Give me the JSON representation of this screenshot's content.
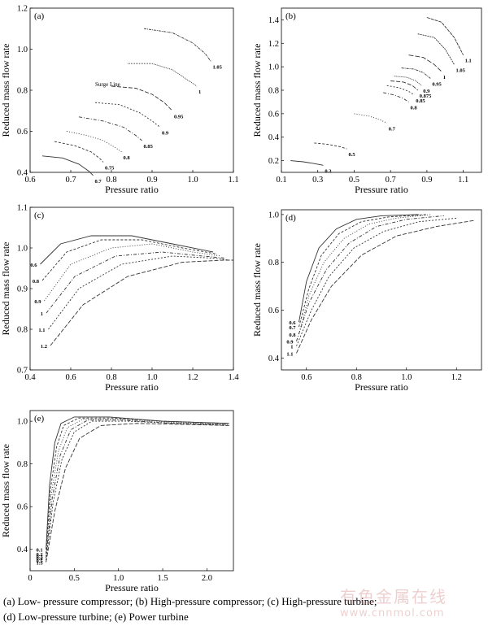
{
  "caption": {
    "line1": "(a) Low- pressure compressor; (b) High-pressure compressor; (c) High-pressure turbine;",
    "line2": "(d)  Low-pressure  turbine;  (e)  Power turbine"
  },
  "watermark": {
    "line1": "有色金属在线",
    "line2": "www.cnnmol.com"
  },
  "chart_data": [
    {
      "id": "a",
      "panel_label": "(a)",
      "type": "line",
      "xlabel": "Pressure ratio",
      "ylabel": "Reduced mass flow rate",
      "xlim": [
        0.6,
        1.1
      ],
      "ylim": [
        0.4,
        1.2
      ],
      "xticks": [
        "0.6",
        "0.7",
        "0.8",
        "0.9",
        "1.0",
        "1.1"
      ],
      "yticks": [
        "0.4",
        "0.6",
        "0.8",
        "1.0",
        "1.2"
      ],
      "annotations": [
        {
          "text": "Surge Line",
          "x": 0.76,
          "y": 0.82
        }
      ],
      "series": [
        {
          "name": "0.7",
          "x": [
            0.63,
            0.68,
            0.72,
            0.745,
            0.755
          ],
          "y": [
            0.48,
            0.47,
            0.44,
            0.405,
            0.385
          ]
        },
        {
          "name": "0.75",
          "x": [
            0.66,
            0.71,
            0.75,
            0.77,
            0.78
          ],
          "y": [
            0.55,
            0.53,
            0.5,
            0.47,
            0.45
          ]
        },
        {
          "name": "0.8",
          "x": [
            0.69,
            0.74,
            0.78,
            0.81,
            0.825
          ],
          "y": [
            0.6,
            0.58,
            0.555,
            0.52,
            0.5
          ]
        },
        {
          "name": "0.85",
          "x": [
            0.72,
            0.78,
            0.83,
            0.86,
            0.875
          ],
          "y": [
            0.67,
            0.65,
            0.62,
            0.58,
            0.555
          ]
        },
        {
          "name": "0.9",
          "x": [
            0.76,
            0.82,
            0.87,
            0.9,
            0.92
          ],
          "y": [
            0.74,
            0.73,
            0.69,
            0.65,
            0.62
          ]
        },
        {
          "name": "0.95",
          "x": [
            0.8,
            0.86,
            0.9,
            0.93,
            0.95
          ],
          "y": [
            0.82,
            0.81,
            0.78,
            0.74,
            0.7
          ]
        },
        {
          "name": "1",
          "x": [
            0.84,
            0.9,
            0.95,
            0.98,
            1.01
          ],
          "y": [
            0.93,
            0.93,
            0.9,
            0.86,
            0.82
          ]
        },
        {
          "name": "1.05",
          "x": [
            0.88,
            0.95,
            1.0,
            1.03,
            1.045
          ],
          "y": [
            1.1,
            1.08,
            1.03,
            0.98,
            0.94
          ]
        }
      ]
    },
    {
      "id": "b",
      "panel_label": "(b)",
      "type": "line",
      "xlabel": "Pressure ratio",
      "ylabel": "Reduced mass flow rate",
      "xlim": [
        0.1,
        1.2
      ],
      "ylim": [
        0.1,
        1.5
      ],
      "xticks": [
        "0.1",
        "0.3",
        "0.5",
        "0.7",
        "0.9",
        "1.1"
      ],
      "yticks": [
        "0.2",
        "0.4",
        "0.6",
        "0.8",
        "1.0",
        "1.2",
        "1.4"
      ],
      "series": [
        {
          "name": "0.3",
          "x": [
            0.15,
            0.22,
            0.28,
            0.33
          ],
          "y": [
            0.2,
            0.19,
            0.175,
            0.16
          ]
        },
        {
          "name": "0.5",
          "x": [
            0.28,
            0.35,
            0.42,
            0.46
          ],
          "y": [
            0.35,
            0.34,
            0.32,
            0.3
          ]
        },
        {
          "name": "0.7",
          "x": [
            0.5,
            0.58,
            0.64,
            0.68
          ],
          "y": [
            0.6,
            0.58,
            0.55,
            0.52
          ]
        },
        {
          "name": "0.8",
          "x": [
            0.66,
            0.72,
            0.77,
            0.8
          ],
          "y": [
            0.78,
            0.76,
            0.73,
            0.7
          ]
        },
        {
          "name": "0.85",
          "x": [
            0.68,
            0.75,
            0.8,
            0.83
          ],
          "y": [
            0.84,
            0.82,
            0.79,
            0.76
          ]
        },
        {
          "name": "0.875",
          "x": [
            0.7,
            0.77,
            0.82,
            0.85
          ],
          "y": [
            0.88,
            0.87,
            0.84,
            0.8
          ]
        },
        {
          "name": "0.9",
          "x": [
            0.72,
            0.79,
            0.84,
            0.87
          ],
          "y": [
            0.92,
            0.91,
            0.88,
            0.84
          ]
        },
        {
          "name": "0.95",
          "x": [
            0.76,
            0.83,
            0.88,
            0.92
          ],
          "y": [
            0.99,
            0.98,
            0.95,
            0.9
          ]
        },
        {
          "name": "1",
          "x": [
            0.8,
            0.88,
            0.94,
            0.98
          ],
          "y": [
            1.1,
            1.08,
            1.02,
            0.96
          ]
        },
        {
          "name": "1.05",
          "x": [
            0.85,
            0.94,
            1.0,
            1.05
          ],
          "y": [
            1.28,
            1.25,
            1.15,
            1.02
          ]
        },
        {
          "name": "1.1",
          "x": [
            0.9,
            0.98,
            1.05,
            1.1
          ],
          "y": [
            1.42,
            1.38,
            1.25,
            1.1
          ]
        }
      ]
    },
    {
      "id": "c",
      "panel_label": "(c)",
      "type": "line",
      "xlabel": "Pressure ratio",
      "ylabel": "Reduced mass flow rate",
      "xlim": [
        0.4,
        1.4
      ],
      "ylim": [
        0.7,
        1.1
      ],
      "xticks": [
        "0.4",
        "0.6",
        "0.8",
        "1.0",
        "1.2",
        "1.4"
      ],
      "yticks": [
        "0.7",
        "0.8",
        "0.9",
        "1.0",
        "1.1"
      ],
      "series": [
        {
          "name": "0.6",
          "x": [
            0.45,
            0.55,
            0.7,
            0.9,
            1.1,
            1.3
          ],
          "y": [
            0.96,
            1.01,
            1.03,
            1.03,
            1.01,
            0.99
          ]
        },
        {
          "name": "0.8",
          "x": [
            0.46,
            0.58,
            0.75,
            0.95,
            1.15,
            1.32
          ],
          "y": [
            0.92,
            0.99,
            1.02,
            1.02,
            1.0,
            0.985
          ]
        },
        {
          "name": "0.9",
          "x": [
            0.47,
            0.6,
            0.8,
            1.0,
            1.2,
            1.34
          ],
          "y": [
            0.87,
            0.96,
            1.0,
            1.01,
            0.99,
            0.98
          ]
        },
        {
          "name": "1",
          "x": [
            0.48,
            0.62,
            0.82,
            1.05,
            1.25,
            1.36
          ],
          "y": [
            0.84,
            0.93,
            0.98,
            0.99,
            0.98,
            0.975
          ]
        },
        {
          "name": "1.1",
          "x": [
            0.49,
            0.64,
            0.85,
            1.1,
            1.3,
            1.38
          ],
          "y": [
            0.8,
            0.9,
            0.96,
            0.98,
            0.975,
            0.97
          ]
        },
        {
          "name": "1.2",
          "x": [
            0.5,
            0.66,
            0.88,
            1.15,
            1.35,
            1.4
          ],
          "y": [
            0.76,
            0.86,
            0.93,
            0.965,
            0.97,
            0.97
          ]
        }
      ]
    },
    {
      "id": "d",
      "panel_label": "(d)",
      "type": "line",
      "xlabel": "Pressure ratio",
      "ylabel": "Reduced mass flow rate",
      "xlim": [
        0.5,
        1.3
      ],
      "ylim": [
        0.35,
        1.02
      ],
      "xticks": [
        "0.6",
        "0.8",
        "1.0",
        "1.2"
      ],
      "yticks": [
        "0.4",
        "0.6",
        "0.8",
        "1.0"
      ],
      "series": [
        {
          "name": "0.6",
          "x": [
            0.57,
            0.6,
            0.65,
            0.72,
            0.8,
            0.9,
            1.05
          ],
          "y": [
            0.55,
            0.72,
            0.86,
            0.94,
            0.98,
            0.995,
            1.0
          ]
        },
        {
          "name": "0.7",
          "x": [
            0.57,
            0.61,
            0.66,
            0.73,
            0.82,
            0.93,
            1.08
          ],
          "y": [
            0.53,
            0.69,
            0.83,
            0.92,
            0.97,
            0.99,
            1.0
          ]
        },
        {
          "name": "0.8",
          "x": [
            0.57,
            0.61,
            0.67,
            0.75,
            0.85,
            0.96,
            1.1
          ],
          "y": [
            0.5,
            0.66,
            0.8,
            0.9,
            0.96,
            0.985,
            1.0
          ]
        },
        {
          "name": "0.9",
          "x": [
            0.56,
            0.61,
            0.68,
            0.77,
            0.88,
            1.0,
            1.15
          ],
          "y": [
            0.47,
            0.63,
            0.77,
            0.88,
            0.95,
            0.98,
            0.995
          ]
        },
        {
          "name": "1",
          "x": [
            0.56,
            0.62,
            0.69,
            0.79,
            0.91,
            1.05,
            1.2
          ],
          "y": [
            0.45,
            0.6,
            0.74,
            0.86,
            0.93,
            0.97,
            0.985
          ]
        },
        {
          "name": "1.1",
          "x": [
            0.56,
            0.62,
            0.7,
            0.82,
            0.96,
            1.12,
            1.27
          ],
          "y": [
            0.42,
            0.56,
            0.7,
            0.83,
            0.91,
            0.95,
            0.975
          ]
        }
      ]
    },
    {
      "id": "e",
      "panel_label": "(e)",
      "type": "line",
      "xlabel": "Pressure ratio",
      "ylabel": "Reduced mass flow rate",
      "xlim": [
        0.0,
        2.3
      ],
      "ylim": [
        0.3,
        1.05
      ],
      "xticks": [
        "0",
        "0.5",
        "1.0",
        "1.5",
        "2.0"
      ],
      "yticks": [
        "0.4",
        "0.6",
        "0.8",
        "1.0"
      ],
      "series": [
        {
          "name": "0.1",
          "x": [
            0.18,
            0.22,
            0.28,
            0.35,
            0.5,
            0.9,
            1.5,
            2.25
          ],
          "y": [
            0.4,
            0.7,
            0.9,
            0.99,
            1.02,
            1.02,
            1.0,
            0.99
          ]
        },
        {
          "name": "0.2",
          "x": [
            0.18,
            0.23,
            0.3,
            0.38,
            0.55,
            0.95,
            1.5,
            2.25
          ],
          "y": [
            0.38,
            0.68,
            0.88,
            0.98,
            1.015,
            1.015,
            1.0,
            0.99
          ]
        },
        {
          "name": "0.3",
          "x": [
            0.18,
            0.24,
            0.32,
            0.42,
            0.6,
            1.0,
            1.6,
            2.25
          ],
          "y": [
            0.37,
            0.66,
            0.86,
            0.97,
            1.01,
            1.01,
            0.995,
            0.985
          ]
        },
        {
          "name": "0.4",
          "x": [
            0.18,
            0.25,
            0.34,
            0.46,
            0.65,
            1.05,
            1.6,
            2.25
          ],
          "y": [
            0.36,
            0.64,
            0.84,
            0.96,
            1.005,
            1.005,
            0.99,
            0.985
          ]
        },
        {
          "name": "0.5",
          "x": [
            0.18,
            0.26,
            0.36,
            0.5,
            0.7,
            1.1,
            1.7,
            2.25
          ],
          "y": [
            0.35,
            0.62,
            0.82,
            0.95,
            1.0,
            1.0,
            0.99,
            0.98
          ]
        },
        {
          "name": "1.5",
          "x": [
            0.18,
            0.28,
            0.4,
            0.56,
            0.8,
            1.2,
            1.8,
            2.25
          ],
          "y": [
            0.34,
            0.58,
            0.78,
            0.92,
            0.98,
            0.99,
            0.985,
            0.98
          ]
        }
      ]
    }
  ]
}
